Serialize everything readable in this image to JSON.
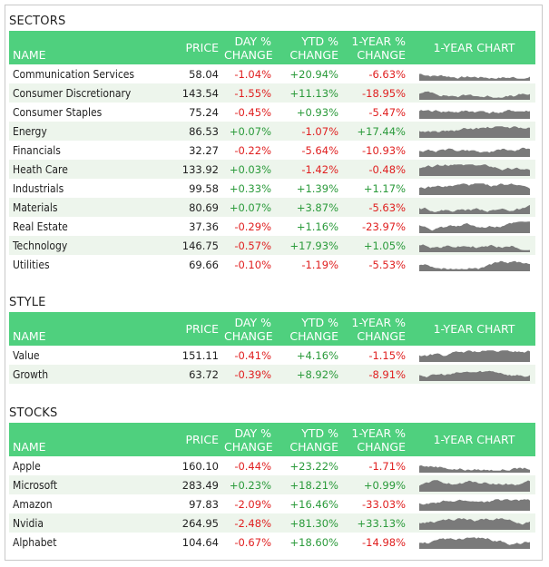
{
  "sections": [
    {
      "title": "SECTORS",
      "header": {
        "name": "NAME",
        "price": "PRICE",
        "day_l1": "DAY %",
        "day_l2": "CHANGE",
        "ytd_l1": "YTD %",
        "ytd_l2": "CHANGE",
        "yr_l1": "1-YEAR %",
        "yr_l2": "CHANGE",
        "chart": "1-YEAR CHART"
      },
      "rows": [
        {
          "name": "Communication Services",
          "price": "58.04",
          "day": "-1.04%",
          "ytd": "+20.94%",
          "year": "-6.63%"
        },
        {
          "name": "Consumer Discretionary",
          "price": "143.54",
          "day": "-1.55%",
          "ytd": "+11.13%",
          "year": "-18.95%"
        },
        {
          "name": "Consumer Staples",
          "price": "75.24",
          "day": "-0.45%",
          "ytd": "+0.93%",
          "year": "-5.47%"
        },
        {
          "name": "Energy",
          "price": "86.53",
          "day": "+0.07%",
          "ytd": "-1.07%",
          "year": "+17.44%"
        },
        {
          "name": "Financials",
          "price": "32.27",
          "day": "-0.22%",
          "ytd": "-5.64%",
          "year": "-10.93%"
        },
        {
          "name": "Heath Care",
          "price": "133.92",
          "day": "+0.03%",
          "ytd": "-1.42%",
          "year": "-0.48%"
        },
        {
          "name": "Industrials",
          "price": "99.58",
          "day": "+0.33%",
          "ytd": "+1.39%",
          "year": "+1.17%"
        },
        {
          "name": "Materials",
          "price": "80.69",
          "day": "+0.07%",
          "ytd": "+3.87%",
          "year": "-5.63%"
        },
        {
          "name": "Real Estate",
          "price": "37.36",
          "day": "-0.29%",
          "ytd": "+1.16%",
          "year": "-23.97%"
        },
        {
          "name": "Technology",
          "price": "146.75",
          "day": "-0.57%",
          "ytd": "+17.93%",
          "year": "+1.05%"
        },
        {
          "name": "Utilities",
          "price": "69.66",
          "day": "-0.10%",
          "ytd": "-1.19%",
          "year": "-5.53%"
        }
      ]
    },
    {
      "title": "STYLE",
      "header": {
        "name": "NAME",
        "price": "PRICE",
        "day_l1": "DAY %",
        "day_l2": "CHANGE",
        "ytd_l1": "YTD %",
        "ytd_l2": "CHANGE",
        "yr_l1": "1-YEAR %",
        "yr_l2": "CHANGE",
        "chart": "1-YEAR CHART"
      },
      "rows": [
        {
          "name": "Value",
          "price": "151.11",
          "day": "-0.41%",
          "ytd": "+4.16%",
          "year": "-1.15%"
        },
        {
          "name": "Growth",
          "price": "63.72",
          "day": "-0.39%",
          "ytd": "+8.92%",
          "year": "-8.91%"
        }
      ]
    },
    {
      "title": "STOCKS",
      "header": {
        "name": "NAME",
        "price": "PRICE",
        "day_l1": "DAY %",
        "day_l2": "CHANGE",
        "ytd_l1": "YTD %",
        "ytd_l2": "CHANGE",
        "yr_l1": "1-YEAR %",
        "yr_l2": "CHANGE",
        "chart": "1-YEAR CHART"
      },
      "rows": [
        {
          "name": "Apple",
          "price": "160.10",
          "day": "-0.44%",
          "ytd": "+23.22%",
          "year": "-1.71%"
        },
        {
          "name": "Microsoft",
          "price": "283.49",
          "day": "+0.23%",
          "ytd": "+18.21%",
          "year": "+0.99%"
        },
        {
          "name": "Amazon",
          "price": "97.83",
          "day": "-2.09%",
          "ytd": "+16.46%",
          "year": "-33.03%"
        },
        {
          "name": "Nvidia",
          "price": "264.95",
          "day": "-2.48%",
          "ytd": "+81.30%",
          "year": "+33.13%"
        },
        {
          "name": "Alphabet",
          "price": "104.64",
          "day": "-0.67%",
          "ytd": "+18.60%",
          "year": "-14.98%"
        }
      ]
    }
  ],
  "colors": {
    "header_bg": "#4fd07e",
    "row_alt_bg": "#edf5ec",
    "negative": "#e02020",
    "positive": "#2a9a3a",
    "sparkline_fill": "#7a7a7a"
  }
}
